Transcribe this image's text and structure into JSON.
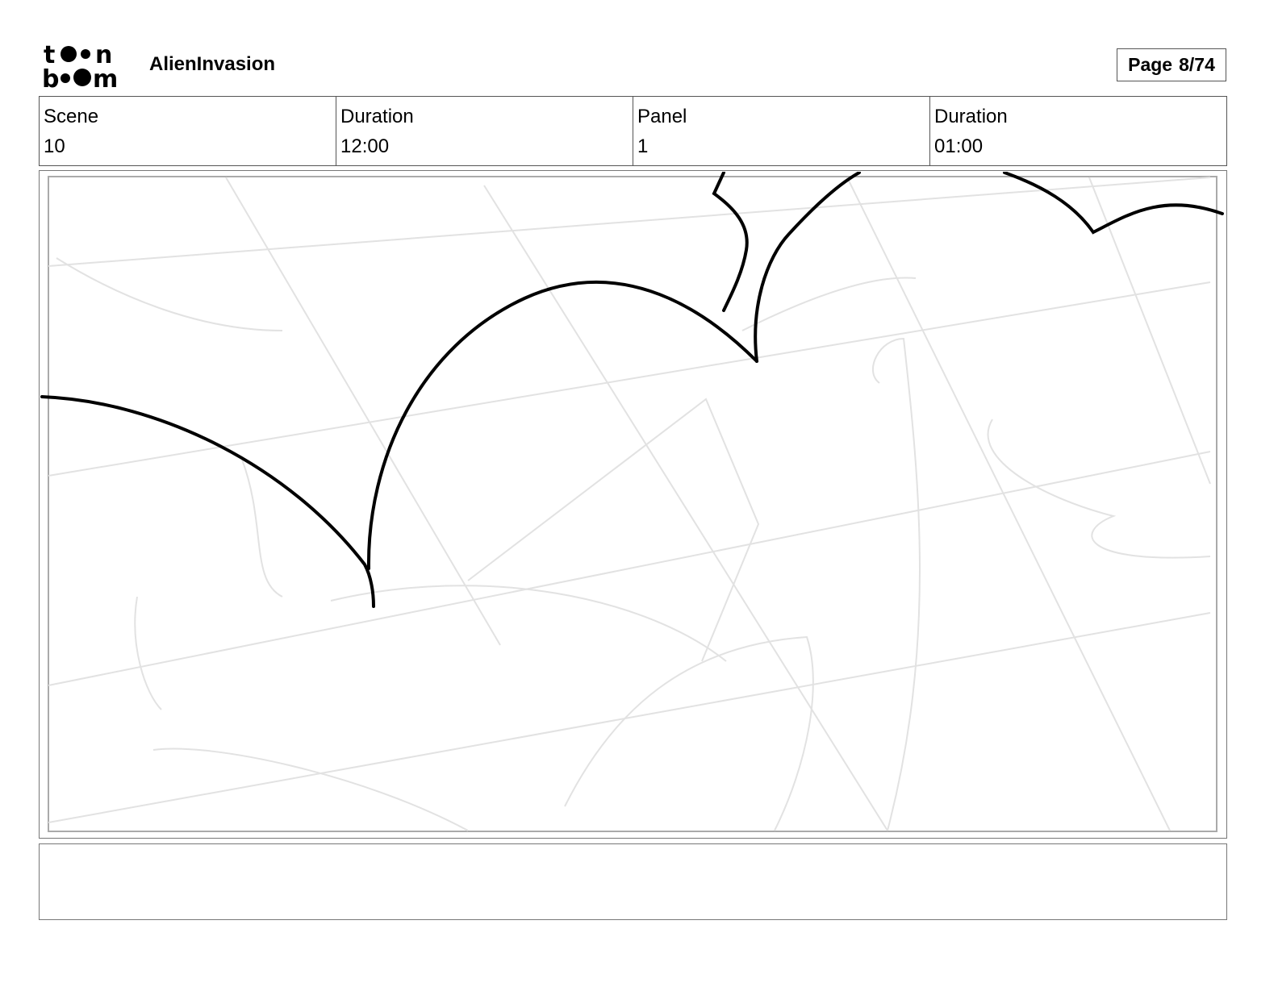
{
  "header": {
    "logo_text": "toon boom",
    "project_title": "AlienInvasion",
    "page_label": "Page",
    "page_value": "8/74"
  },
  "info": [
    {
      "label": "Scene",
      "value": "10"
    },
    {
      "label": "Duration",
      "value": "12:00"
    },
    {
      "label": "Panel",
      "value": "1"
    },
    {
      "label": "Duration",
      "value": "01:00"
    }
  ],
  "notes": {
    "text": ""
  }
}
